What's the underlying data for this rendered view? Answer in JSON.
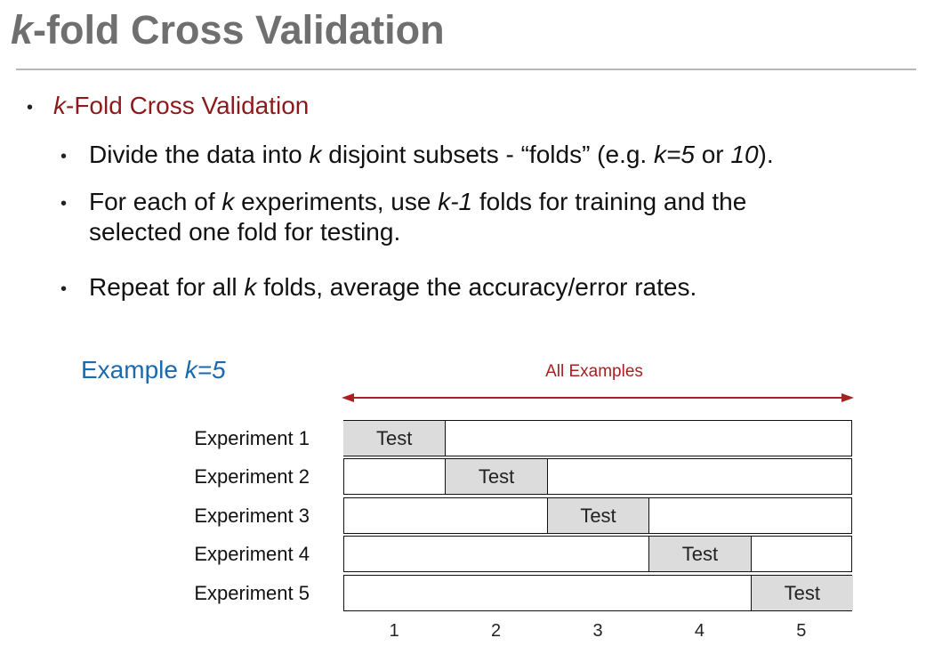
{
  "title": {
    "k": "k",
    "rest": "-fold Cross Validation"
  },
  "bullets": {
    "main": {
      "k": "k",
      "rest": "-Fold Cross Validation"
    },
    "sub1": {
      "a": "Divide the data into ",
      "k": "k",
      "b": " disjoint subsets - “folds” (e.g. ",
      "k5": "k=5",
      "c": " or ",
      "ten": "10",
      "d": ")."
    },
    "sub2": {
      "a": "For each of ",
      "k": "k",
      "b": " experiments, use ",
      "km1": "k-1",
      "c": " folds for training and the",
      "line2": "selected one fold for testing."
    },
    "sub3": {
      "a": "Repeat for all ",
      "k": "k",
      "b": " folds, average the accuracy/error rates."
    }
  },
  "diagram": {
    "example_prefix": "Example ",
    "example_k": "k=5",
    "all_examples": "All Examples",
    "accent_color": "#a82020",
    "example_color": "#1a6ab0",
    "test_fill": "#dcdcdc",
    "experiments": [
      {
        "label": "Experiment 1",
        "test_fold": 1,
        "test_label": "Test"
      },
      {
        "label": "Experiment 2",
        "test_fold": 2,
        "test_label": "Test"
      },
      {
        "label": "Experiment 3",
        "test_fold": 3,
        "test_label": "Test"
      },
      {
        "label": "Experiment 4",
        "test_fold": 4,
        "test_label": "Test"
      },
      {
        "label": "Experiment 5",
        "test_fold": 5,
        "test_label": "Test"
      }
    ],
    "fold_numbers": [
      "1",
      "2",
      "3",
      "4",
      "5"
    ]
  }
}
